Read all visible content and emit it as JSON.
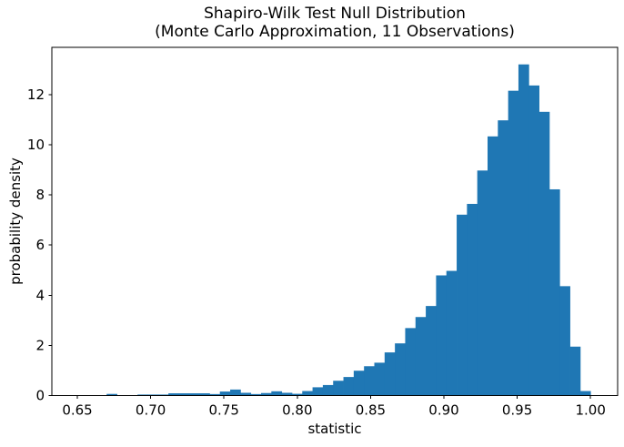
{
  "figure": {
    "title_line1": "Shapiro-Wilk Test Null Distribution",
    "title_line2": "(Monte Carlo Approximation, 11 Observations)",
    "xlabel": "statistic",
    "ylabel": "probability density"
  },
  "chart_data": {
    "type": "bar",
    "subtype": "histogram",
    "title": "Shapiro-Wilk Test Null Distribution\n(Monte Carlo Approximation, 11 Observations)",
    "xlabel": "statistic",
    "ylabel": "probability density",
    "grid": false,
    "legend": null,
    "background": "#ffffff",
    "bar_color": "#1f77b4",
    "axis_color": "#000000",
    "n_bins": 50,
    "bin_start": 0.6489,
    "bin_width": 0.007022,
    "values": [
      0,
      0,
      0,
      0.065,
      0,
      0,
      0.04,
      0.04,
      0.04,
      0.09,
      0.09,
      0.09,
      0.09,
      0.06,
      0.16,
      0.24,
      0.11,
      0.06,
      0.1,
      0.17,
      0.11,
      0.07,
      0.18,
      0.33,
      0.42,
      0.59,
      0.74,
      0.99,
      1.17,
      1.31,
      1.72,
      2.08,
      2.69,
      3.13,
      3.57,
      4.79,
      4.97,
      7.21,
      7.64,
      8.97,
      10.33,
      10.97,
      12.15,
      13.2,
      12.36,
      11.31,
      8.22,
      4.36,
      1.95,
      0.18
    ],
    "xlim": [
      0.6326,
      1.0185
    ],
    "ylim": [
      0,
      13.88
    ],
    "xticks": [
      0.65,
      0.7,
      0.75,
      0.8,
      0.85,
      0.9,
      0.95,
      1.0
    ],
    "xtick_labels": [
      "0.65",
      "0.70",
      "0.75",
      "0.80",
      "0.85",
      "0.90",
      "0.95",
      "1.00"
    ],
    "yticks": [
      0,
      2,
      4,
      6,
      8,
      10,
      12
    ],
    "ytick_labels": [
      "0",
      "2",
      "4",
      "6",
      "8",
      "10",
      "12"
    ]
  }
}
